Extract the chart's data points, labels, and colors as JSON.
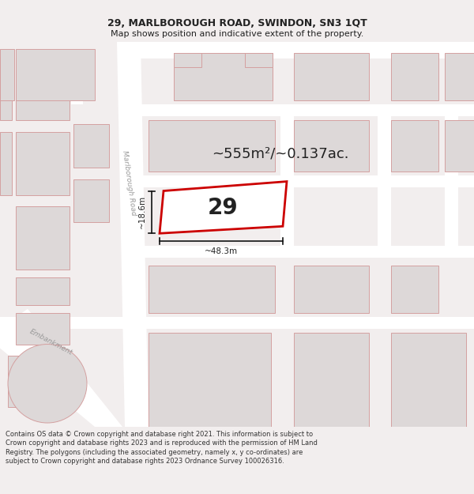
{
  "title": "29, MARLBOROUGH ROAD, SWINDON, SN3 1QT",
  "subtitle": "Map shows position and indicative extent of the property.",
  "area_label": "~555m²/~0.137ac.",
  "plot_number": "29",
  "dim_width": "~48.3m",
  "dim_height": "~18.6m",
  "footer": "Contains OS data © Crown copyright and database right 2021. This information is subject to Crown copyright and database rights 2023 and is reproduced with the permission of HM Land Registry. The polygons (including the associated geometry, namely x, y co-ordinates) are subject to Crown copyright and database rights 2023 Ordnance Survey 100026316.",
  "bg_color": "#f2eeee",
  "map_bg": "#f2eeee",
  "road_color": "#ffffff",
  "building_fill": "#ddd8d8",
  "building_stroke": "#d4a0a0",
  "highlight_fill": "#ffffff",
  "highlight_stroke": "#cc0000",
  "road_label_color": "#999999",
  "dim_line_color": "#111111",
  "text_color": "#222222",
  "title_fontsize": 9,
  "subtitle_fontsize": 8,
  "footer_fontsize": 6.0
}
